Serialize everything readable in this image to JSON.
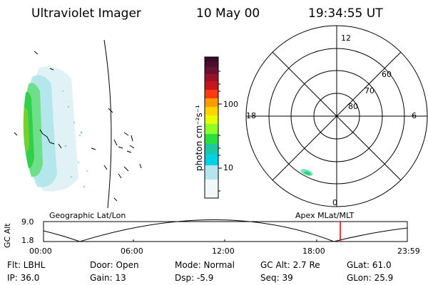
{
  "header": {
    "instrument": "Ultraviolet Imager",
    "date": "10 May 00",
    "time": "19:34:55 UT"
  },
  "colorbar": {
    "unit_label": "photon cm⁻²s⁻¹",
    "ticks": [
      "100",
      "10"
    ],
    "colors": [
      "#3a0a28",
      "#4a0e2e",
      "#6a1030",
      "#9a1228",
      "#c8141e",
      "#ff3a10",
      "#ff9a00",
      "#ffd400",
      "#e8ff00",
      "#8cff28",
      "#28e040",
      "#1ec8a0",
      "#00d2e6",
      "#b4e6f0",
      "#f0f8fa"
    ]
  },
  "polar_plot": {
    "mlt_labels": {
      "top": "12",
      "left": "18",
      "right": "6",
      "bottom": "0"
    },
    "lat_labels": [
      "60",
      "70",
      "80"
    ]
  },
  "timeline": {
    "left_title": "Geographic Lat/Lon",
    "right_title": "Apex  MLat/MLT",
    "yaxis_label": "GC Alt",
    "y_ticks": [
      "9.0",
      "1.8"
    ],
    "x_ticks": [
      "00:00",
      "06:00",
      "12:00",
      "18:00",
      "23:59"
    ],
    "current_marker_color": "#e00000",
    "current_time_fraction": 0.815
  },
  "info": {
    "row1": {
      "flt": "Flt: LBHL",
      "door": "Door: Open",
      "mode": "Mode: Normal",
      "gcalt": "GC Alt: 2.7 Re",
      "glat": "GLat:  61.0"
    },
    "row2": {
      "ip": "IP: 36.0",
      "gain": "Gain: 13",
      "dsp": "Dsp:    -5.9",
      "seq": "Seq: 39",
      "glon": "GLon:  25.9"
    }
  }
}
